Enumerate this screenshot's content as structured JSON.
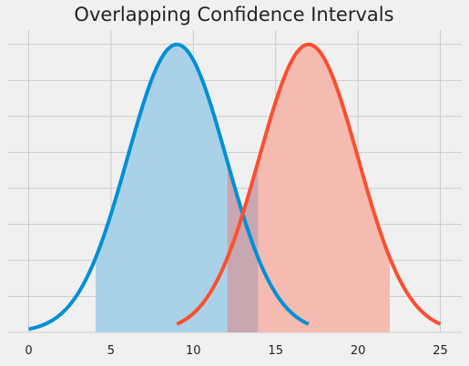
{
  "chart_data": {
    "type": "line",
    "title": "Overlapping Confidence Intervals",
    "xlabel": "",
    "ylabel": "",
    "xlim": [
      -1.3,
      26.3
    ],
    "ylim": [
      0,
      1.05
    ],
    "x_ticks": [
      0,
      5,
      10,
      15,
      20,
      25
    ],
    "x_tick_labels": [
      "0",
      "5",
      "10",
      "15",
      "20",
      "25"
    ],
    "y_tick_labels_visible": false,
    "grid": true,
    "series": [
      {
        "mean": 9,
        "sd": 3,
        "x_range": [
          0,
          17
        ],
        "ci_shaded": [
          4.07,
          13.93
        ],
        "color": "#008fd5",
        "fill": "#a9d2e8"
      },
      {
        "mean": 17,
        "sd": 3,
        "x_range": [
          9,
          25
        ],
        "ci_shaded": [
          12.07,
          21.93
        ],
        "color": "#fc4f30",
        "fill": "#f5bbb0"
      }
    ],
    "overlap_fill": "#c8a7b0"
  }
}
